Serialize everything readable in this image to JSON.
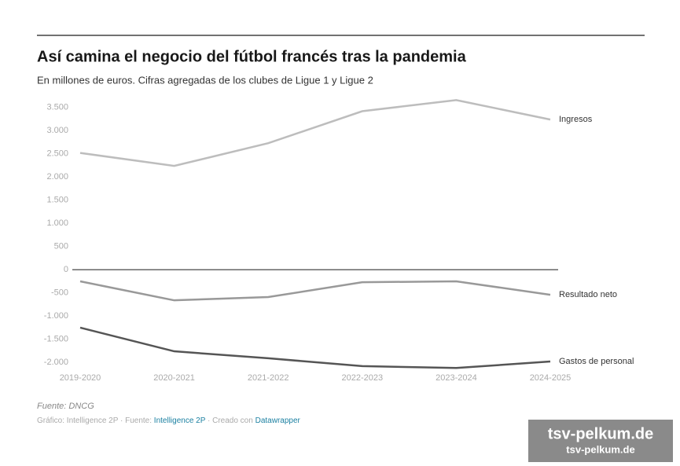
{
  "chart_data": {
    "type": "line",
    "title": "Así camina el negocio del fútbol francés tras la pandemia",
    "subtitle": "En millones de euros. Cifras agregadas de los clubes de Ligue 1 y Ligue 2",
    "categories": [
      "2019-2020",
      "2020-2021",
      "2021-2022",
      "2022-2023",
      "2023-2024",
      "2024-2025"
    ],
    "series": [
      {
        "name": "Ingresos",
        "color": "#bdbdbd",
        "values": [
          2520,
          2240,
          2730,
          3420,
          3660,
          3240
        ]
      },
      {
        "name": "Resultado neto",
        "color": "#999999",
        "values": [
          -250,
          -660,
          -590,
          -270,
          -250,
          -540
        ]
      },
      {
        "name": "Gastos de personal",
        "color": "#555555",
        "values": [
          -1250,
          -1760,
          -1910,
          -2080,
          -2120,
          -1980
        ]
      }
    ],
    "ylim": [
      -2200,
      3700
    ],
    "yticks": [
      {
        "value": 3500,
        "label": "3.500"
      },
      {
        "value": 3000,
        "label": "3.000"
      },
      {
        "value": 2500,
        "label": "2.500"
      },
      {
        "value": 2000,
        "label": "2.000"
      },
      {
        "value": 1500,
        "label": "1.500"
      },
      {
        "value": 1000,
        "label": "1.000"
      },
      500,
      0,
      -500,
      {
        "value": -1000,
        "label": "-1.000"
      },
      {
        "value": -1500,
        "label": "-1.500"
      },
      {
        "value": -2000,
        "label": "-2.000"
      }
    ],
    "zero_line": true,
    "source": "Fuente: DNCG",
    "credits": [
      "Gráfico: Intelligence 2P · Fuente: ",
      "Intelligence 2P",
      " · Creado con ",
      "Datawrapper"
    ],
    "link_color": "#1d81a2",
    "watermark": [
      "tsv-pelkum.de",
      "tsv-pelkum.de"
    ]
  }
}
